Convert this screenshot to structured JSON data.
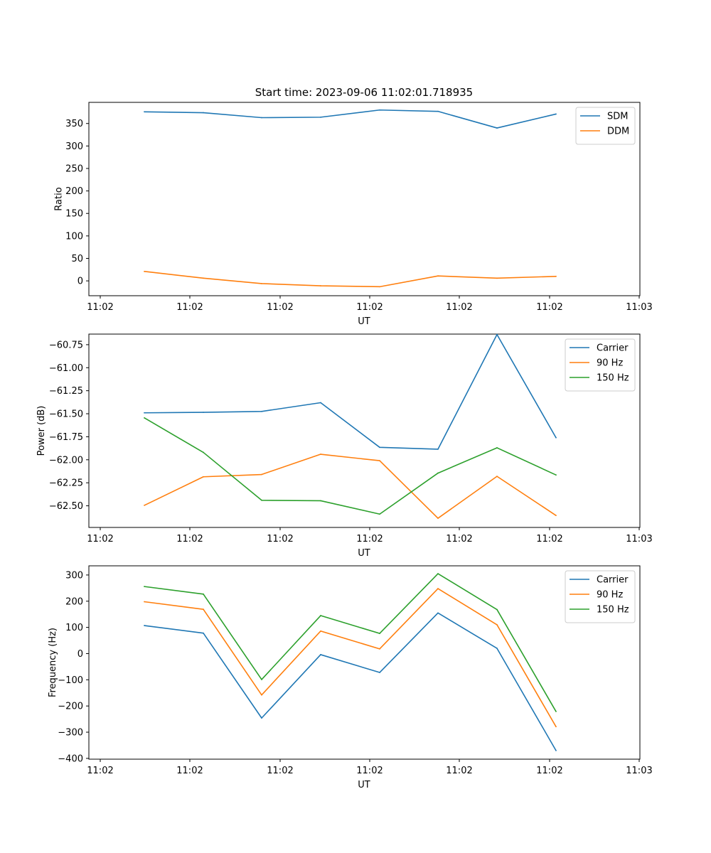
{
  "title": "Start time: 2023-09-06 11:02:01.718935",
  "colors": {
    "blue": "#1f77b4",
    "orange": "#ff7f0e",
    "green": "#2ca02c"
  },
  "x_tick_labels": [
    "11:02",
    "11:02",
    "11:02",
    "11:02",
    "11:02",
    "11:02",
    "11:02"
  ],
  "x_last_tick_label": "11:03",
  "chart_data": [
    {
      "type": "line",
      "title": "Start time: 2023-09-06 11:02:01.718935",
      "xlabel": "UT",
      "ylabel": "Ratio",
      "ylim": [
        -33,
        397
      ],
      "yticks": [
        0,
        50,
        100,
        150,
        200,
        250,
        300,
        350
      ],
      "ytick_labels": [
        "0",
        "50",
        "100",
        "150",
        "200",
        "250",
        "300",
        "350"
      ],
      "legend_position": "top-right",
      "x": [
        1,
        2,
        3,
        4,
        5,
        6,
        7,
        8
      ],
      "series": [
        {
          "name": "SDM",
          "color": "#1f77b4",
          "values": [
            376,
            374,
            363,
            364,
            380,
            377,
            340,
            371
          ]
        },
        {
          "name": "DDM",
          "color": "#ff7f0e",
          "values": [
            21,
            6,
            -6,
            -11,
            -13,
            11,
            6,
            10
          ]
        }
      ]
    },
    {
      "type": "line",
      "title": "",
      "xlabel": "UT",
      "ylabel": "Power (dB)",
      "ylim": [
        -62.735,
        -60.635
      ],
      "yticks": [
        -62.5,
        -62.25,
        -62.0,
        -61.75,
        -61.5,
        -61.25,
        -61.0,
        -60.75
      ],
      "ytick_labels": [
        "−62.50",
        "−62.25",
        "−62.00",
        "−61.75",
        "−61.50",
        "−61.25",
        "−61.00",
        "−60.75"
      ],
      "legend_position": "top-right",
      "x": [
        1,
        2,
        3,
        4,
        5,
        6,
        7,
        8
      ],
      "series": [
        {
          "name": "Carrier",
          "color": "#1f77b4",
          "values": [
            -61.49,
            -61.485,
            -61.475,
            -61.38,
            -61.865,
            -61.885,
            -60.64,
            -61.76
          ]
        },
        {
          "name": "90 Hz",
          "color": "#ff7f0e",
          "values": [
            -62.495,
            -62.185,
            -62.16,
            -61.94,
            -62.01,
            -62.635,
            -62.18,
            -62.605
          ]
        },
        {
          "name": "150 Hz",
          "color": "#2ca02c",
          "values": [
            -61.545,
            -61.92,
            -62.44,
            -62.445,
            -62.59,
            -62.145,
            -61.87,
            -62.165
          ]
        }
      ]
    },
    {
      "type": "line",
      "title": "",
      "xlabel": "UT",
      "ylabel": "Frequency (Hz)",
      "ylim": [
        -403,
        335
      ],
      "yticks": [
        -400,
        -300,
        -200,
        -100,
        0,
        100,
        200,
        300
      ],
      "ytick_labels": [
        "−400",
        "−300",
        "−200",
        "−100",
        "0",
        "100",
        "200",
        "300"
      ],
      "legend_position": "top-right",
      "x": [
        1,
        2,
        3,
        4,
        5,
        6,
        7,
        8
      ],
      "series": [
        {
          "name": "Carrier",
          "color": "#1f77b4",
          "values": [
            107,
            78,
            -246,
            -4,
            -72,
            155,
            20,
            -370
          ]
        },
        {
          "name": "90 Hz",
          "color": "#ff7f0e",
          "values": [
            198,
            169,
            -158,
            86,
            18,
            248,
            110,
            -279
          ]
        },
        {
          "name": "150 Hz",
          "color": "#2ca02c",
          "values": [
            256,
            227,
            -99,
            145,
            77,
            305,
            168,
            -221
          ]
        }
      ]
    }
  ]
}
